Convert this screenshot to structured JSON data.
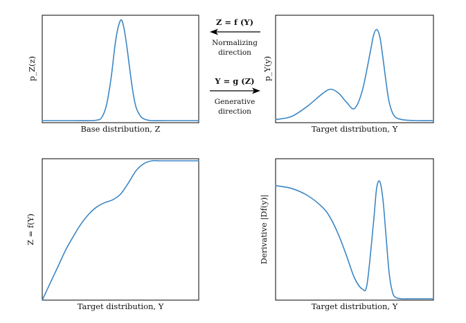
{
  "chart_data": [
    {
      "panel": "top-left",
      "type": "line",
      "xlabel": "Base distribution, Z",
      "ylabel": "p_Z(z)",
      "series": [
        {
          "x": [
            0,
            0.1,
            0.2,
            0.3,
            0.35,
            0.38,
            0.41,
            0.44,
            0.47,
            0.5,
            0.52,
            0.54,
            0.56,
            0.58,
            0.6,
            0.63,
            0.66,
            0.7,
            0.8,
            0.9,
            1.0
          ],
          "y": [
            0.0,
            0.0,
            0.0,
            0.0,
            0.005,
            0.03,
            0.15,
            0.42,
            0.8,
            0.99,
            0.93,
            0.74,
            0.5,
            0.28,
            0.13,
            0.04,
            0.01,
            0.0,
            0.0,
            0.0,
            0.0
          ]
        }
      ]
    },
    {
      "panel": "top-right",
      "type": "line",
      "xlabel": "Target distribution, Y",
      "ylabel": "p_Y(y)",
      "series": [
        {
          "x": [
            0,
            0.1,
            0.2,
            0.3,
            0.35,
            0.4,
            0.45,
            0.5,
            0.55,
            0.6,
            0.62,
            0.64,
            0.66,
            0.68,
            0.7,
            0.72,
            0.75,
            0.8,
            0.9,
            1.0
          ],
          "y": [
            0.01,
            0.04,
            0.14,
            0.27,
            0.31,
            0.27,
            0.18,
            0.12,
            0.3,
            0.68,
            0.84,
            0.9,
            0.83,
            0.62,
            0.38,
            0.18,
            0.05,
            0.01,
            0.0,
            0.0
          ]
        }
      ]
    },
    {
      "panel": "bottom-left",
      "type": "line",
      "xlabel": "Target distribution, Y",
      "ylabel": "Z = f(Y)",
      "series": [
        {
          "x": [
            0,
            0.05,
            0.1,
            0.15,
            0.2,
            0.25,
            0.3,
            0.35,
            0.4,
            0.45,
            0.5,
            0.55,
            0.6,
            0.65,
            0.7,
            0.75,
            0.8,
            0.85,
            0.9,
            1.0
          ],
          "y": [
            0.0,
            0.12,
            0.24,
            0.36,
            0.46,
            0.55,
            0.62,
            0.67,
            0.7,
            0.72,
            0.76,
            0.84,
            0.93,
            0.98,
            1.0,
            1.0,
            1.0,
            1.0,
            1.0,
            1.0
          ]
        }
      ]
    },
    {
      "panel": "bottom-right",
      "type": "line",
      "xlabel": "Target distribution, Y",
      "ylabel": "Derivative |Df(y)|",
      "series": [
        {
          "x": [
            0,
            0.1,
            0.2,
            0.3,
            0.35,
            0.4,
            0.45,
            0.5,
            0.55,
            0.58,
            0.62,
            0.64,
            0.66,
            0.68,
            0.7,
            0.72,
            0.74,
            0.76,
            0.8,
            0.85,
            0.9,
            1.0
          ],
          "y": [
            0.82,
            0.8,
            0.75,
            0.66,
            0.58,
            0.46,
            0.31,
            0.15,
            0.07,
            0.11,
            0.55,
            0.8,
            0.85,
            0.72,
            0.45,
            0.18,
            0.05,
            0.01,
            0.0,
            0.0,
            0.0,
            0.0
          ]
        }
      ]
    }
  ],
  "arrows": {
    "normalizing_formula": "Z = f (Y)",
    "normalizing_label_line1": "Normalizing",
    "normalizing_label_line2": "direction",
    "generative_formula": "Y = g (Z)",
    "generative_label_line1": "Generative",
    "generative_label_line2": "direction"
  },
  "colors": {
    "curve": "#3b86c4"
  }
}
